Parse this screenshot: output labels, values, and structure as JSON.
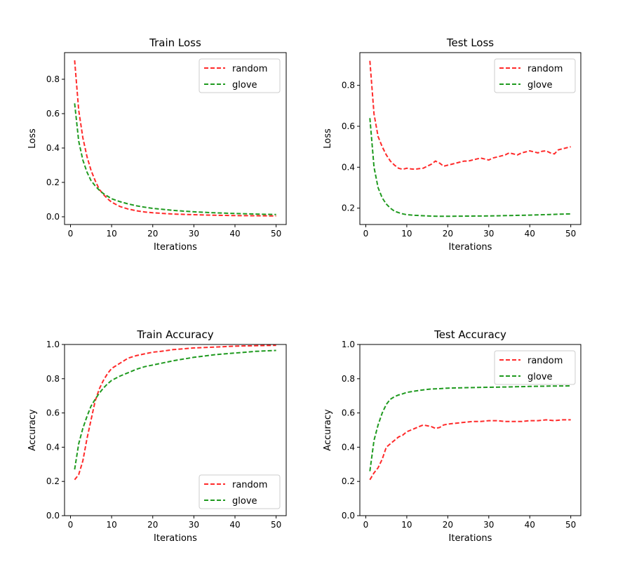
{
  "colors": {
    "random": "#ff2a2a",
    "glove": "#1f9a1f"
  },
  "chart_data": [
    {
      "type": "line",
      "title": "Train Loss",
      "xlabel": "Iterations",
      "ylabel": "Loss",
      "xlim": [
        -1.45,
        52.45
      ],
      "ylim": [
        -0.045,
        0.955
      ],
      "xticks": [
        0,
        10,
        20,
        30,
        40,
        50
      ],
      "yticks": [
        0.0,
        0.2,
        0.4,
        0.6,
        0.8
      ],
      "ytick_labels": [
        "0.0",
        "0.2",
        "0.4",
        "0.6",
        "0.8"
      ],
      "legend": "top-right",
      "grid": false,
      "series": [
        {
          "name": "random",
          "x": [
            1,
            2,
            3,
            4,
            5,
            6,
            7,
            8,
            9,
            10,
            12,
            14,
            16,
            18,
            20,
            25,
            30,
            35,
            40,
            45,
            50
          ],
          "values": [
            0.91,
            0.62,
            0.46,
            0.35,
            0.27,
            0.21,
            0.16,
            0.13,
            0.105,
            0.085,
            0.06,
            0.045,
            0.035,
            0.028,
            0.023,
            0.016,
            0.012,
            0.009,
            0.007,
            0.006,
            0.005
          ]
        },
        {
          "name": "glove",
          "x": [
            1,
            2,
            3,
            4,
            5,
            6,
            7,
            8,
            9,
            10,
            12,
            14,
            16,
            18,
            20,
            25,
            30,
            35,
            40,
            45,
            50
          ],
          "values": [
            0.66,
            0.44,
            0.33,
            0.26,
            0.21,
            0.18,
            0.155,
            0.135,
            0.12,
            0.105,
            0.088,
            0.075,
            0.064,
            0.056,
            0.049,
            0.037,
            0.029,
            0.023,
            0.019,
            0.016,
            0.013
          ]
        }
      ]
    },
    {
      "type": "line",
      "title": "Test Loss",
      "xlabel": "Iterations",
      "ylabel": "Loss",
      "xlim": [
        -1.45,
        52.45
      ],
      "ylim": [
        0.12,
        0.96
      ],
      "xticks": [
        0,
        10,
        20,
        30,
        40,
        50
      ],
      "yticks": [
        0.2,
        0.4,
        0.6,
        0.8
      ],
      "ytick_labels": [
        "0.2",
        "0.4",
        "0.6",
        "0.8"
      ],
      "legend": "top-right",
      "grid": false,
      "series": [
        {
          "name": "random",
          "x": [
            1,
            2,
            3,
            4,
            5,
            6,
            7,
            8,
            9,
            10,
            11,
            12,
            13,
            14,
            15,
            16,
            17,
            18,
            19,
            20,
            21,
            22,
            23,
            24,
            25,
            26,
            27,
            28,
            29,
            30,
            31,
            32,
            33,
            34,
            35,
            36,
            37,
            38,
            39,
            40,
            41,
            42,
            43,
            44,
            45,
            46,
            47,
            48,
            49,
            50
          ],
          "values": [
            0.92,
            0.66,
            0.55,
            0.5,
            0.46,
            0.43,
            0.41,
            0.395,
            0.39,
            0.395,
            0.392,
            0.39,
            0.393,
            0.395,
            0.405,
            0.415,
            0.43,
            0.42,
            0.405,
            0.41,
            0.415,
            0.42,
            0.425,
            0.43,
            0.43,
            0.435,
            0.44,
            0.445,
            0.44,
            0.435,
            0.445,
            0.45,
            0.455,
            0.46,
            0.47,
            0.465,
            0.46,
            0.47,
            0.475,
            0.48,
            0.475,
            0.47,
            0.478,
            0.48,
            0.47,
            0.465,
            0.485,
            0.49,
            0.495,
            0.5
          ]
        },
        {
          "name": "glove",
          "x": [
            1,
            2,
            3,
            4,
            5,
            6,
            7,
            8,
            9,
            10,
            12,
            14,
            16,
            18,
            20,
            25,
            30,
            35,
            40,
            45,
            50
          ],
          "values": [
            0.64,
            0.4,
            0.3,
            0.25,
            0.22,
            0.2,
            0.185,
            0.178,
            0.172,
            0.168,
            0.165,
            0.163,
            0.161,
            0.16,
            0.16,
            0.161,
            0.162,
            0.164,
            0.166,
            0.169,
            0.172
          ]
        }
      ]
    },
    {
      "type": "line",
      "title": "Train Accuracy",
      "xlabel": "Iterations",
      "ylabel": "Accuracy",
      "xlim": [
        -1.45,
        52.45
      ],
      "ylim": [
        0.0,
        1.0
      ],
      "xticks": [
        0,
        10,
        20,
        30,
        40,
        50
      ],
      "yticks": [
        0.0,
        0.2,
        0.4,
        0.6,
        0.8,
        1.0
      ],
      "ytick_labels": [
        "0.0",
        "0.2",
        "0.4",
        "0.6",
        "0.8",
        "1.0"
      ],
      "legend": "bottom-right",
      "grid": false,
      "series": [
        {
          "name": "random",
          "x": [
            1,
            2,
            3,
            4,
            5,
            6,
            7,
            8,
            9,
            10,
            12,
            14,
            16,
            18,
            20,
            22,
            25,
            30,
            35,
            40,
            45,
            50
          ],
          "values": [
            0.21,
            0.24,
            0.32,
            0.45,
            0.56,
            0.67,
            0.74,
            0.79,
            0.83,
            0.86,
            0.89,
            0.92,
            0.935,
            0.945,
            0.955,
            0.96,
            0.97,
            0.98,
            0.985,
            0.99,
            0.993,
            0.995
          ]
        },
        {
          "name": "glove",
          "x": [
            1,
            2,
            3,
            4,
            5,
            6,
            7,
            8,
            9,
            10,
            12,
            14,
            16,
            18,
            20,
            25,
            30,
            35,
            40,
            45,
            50
          ],
          "values": [
            0.27,
            0.42,
            0.51,
            0.58,
            0.64,
            0.68,
            0.715,
            0.745,
            0.77,
            0.79,
            0.815,
            0.835,
            0.855,
            0.87,
            0.88,
            0.905,
            0.925,
            0.94,
            0.95,
            0.96,
            0.965
          ]
        }
      ]
    },
    {
      "type": "line",
      "title": "Test Accuracy",
      "xlabel": "Iterations",
      "ylabel": "Accuracy",
      "xlim": [
        -1.45,
        52.45
      ],
      "ylim": [
        0.0,
        1.0
      ],
      "xticks": [
        0,
        10,
        20,
        30,
        40,
        50
      ],
      "yticks": [
        0.0,
        0.2,
        0.4,
        0.6,
        0.8,
        1.0
      ],
      "ytick_labels": [
        "0.0",
        "0.2",
        "0.4",
        "0.6",
        "0.8",
        "1.0"
      ],
      "legend": "top-right",
      "grid": false,
      "series": [
        {
          "name": "random",
          "x": [
            1,
            2,
            3,
            4,
            5,
            6,
            7,
            8,
            9,
            10,
            11,
            12,
            13,
            14,
            15,
            16,
            17,
            18,
            19,
            20,
            22,
            24,
            26,
            28,
            30,
            32,
            34,
            36,
            38,
            40,
            42,
            44,
            46,
            48,
            50
          ],
          "values": [
            0.21,
            0.25,
            0.28,
            0.33,
            0.4,
            0.42,
            0.44,
            0.46,
            0.47,
            0.49,
            0.5,
            0.51,
            0.52,
            0.53,
            0.525,
            0.52,
            0.51,
            0.515,
            0.53,
            0.535,
            0.54,
            0.545,
            0.55,
            0.55,
            0.555,
            0.555,
            0.55,
            0.55,
            0.55,
            0.555,
            0.555,
            0.56,
            0.555,
            0.56,
            0.56
          ]
        },
        {
          "name": "glove",
          "x": [
            1,
            2,
            3,
            4,
            5,
            6,
            7,
            8,
            9,
            10,
            12,
            14,
            16,
            18,
            20,
            25,
            30,
            35,
            40,
            45,
            50
          ],
          "values": [
            0.26,
            0.44,
            0.53,
            0.6,
            0.65,
            0.68,
            0.695,
            0.705,
            0.712,
            0.72,
            0.728,
            0.735,
            0.74,
            0.742,
            0.745,
            0.748,
            0.75,
            0.752,
            0.755,
            0.757,
            0.758
          ]
        }
      ]
    }
  ]
}
